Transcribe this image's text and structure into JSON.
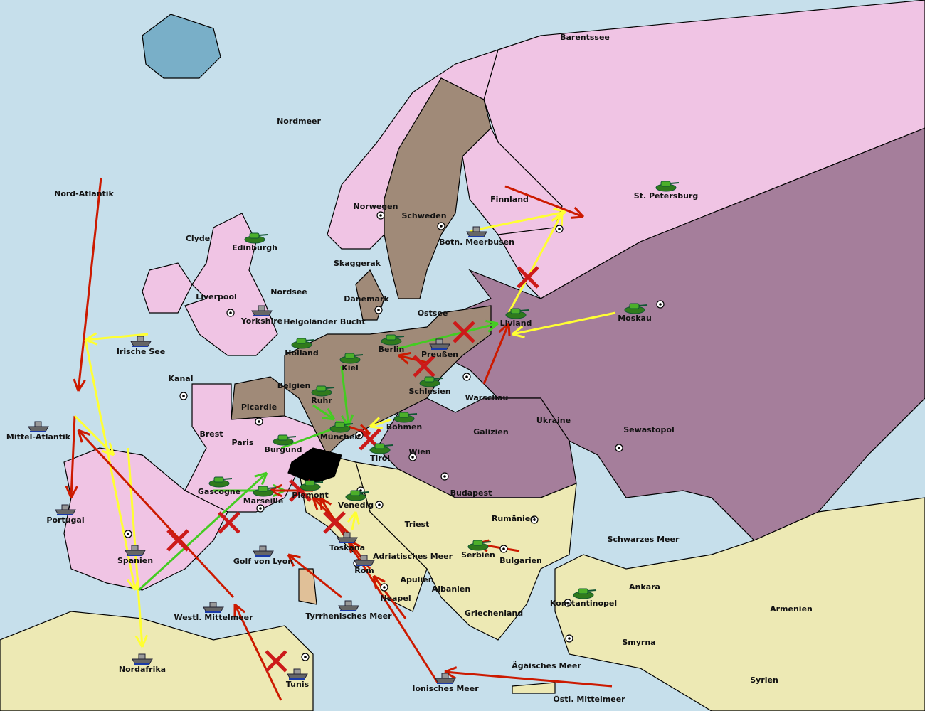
{
  "colors": {
    "sea": "#c6dfeb",
    "england": "#f0c4e4",
    "russia": "#f0c4e4",
    "france": "#f0c4e4",
    "germany": "#a08a78",
    "austria": "#a57e9b",
    "neutral": "#ede9b4",
    "italy": "#ede9b4",
    "switzerland": "#000000",
    "lake": "#79afc8",
    "move": "#cc1a00",
    "support": "#ffff33",
    "convoy": "#44cc22"
  },
  "provinces": [
    "Barentssee",
    "Nordmeer",
    "Nord-Atlantik",
    "St. Petersburg",
    "Finnland",
    "Norwegen",
    "Schweden",
    "Botn. Meerbusen",
    "Clyde",
    "Edinburgh",
    "Skaggerak",
    "Liverpool",
    "Nordsee",
    "Dänemark",
    "Ostsee",
    "Yorkshire",
    "Helgoländer Bucht",
    "Irische See",
    "Livland",
    "Moskau",
    "Holland",
    "Berlin",
    "Preußen",
    "Kiel",
    "Kanal",
    "Belgien",
    "Schlesien",
    "Warschau",
    "Ruhr",
    "Picardie",
    "Ukraine",
    "Mittel-Atlantik",
    "Böhmen",
    "Galizien",
    "Sewastopol",
    "Brest",
    "Paris",
    "München",
    "Wien",
    "Burgund",
    "Tirol",
    "Gascogne",
    "Budapest",
    "Piemont",
    "Marseille",
    "Venedig",
    "Rumänien",
    "Portugal",
    "Triest",
    "Schwarzes Meer",
    "Spanien",
    "Toskana",
    "Adriatisches Meer",
    "Serbien",
    "Golf von Lyon",
    "Bulgarien",
    "Rom",
    "Apulien",
    "Ankara",
    "Albanien",
    "Neapel",
    "Konstantinopel",
    "Armenien",
    "Westl. Mittelmeer",
    "Tyrrhenisches Meer",
    "Griechenland",
    "Smyrna",
    "Nordafrika",
    "Ägäisches Meer",
    "Syrien",
    "Tunis",
    "Ionisches Meer",
    "Östl. Mittelmeer"
  ],
  "units": [
    {
      "type": "army",
      "province": "Edinburgh"
    },
    {
      "type": "fleet",
      "province": "Yorkshire"
    },
    {
      "type": "fleet",
      "province": "Mittel-Atlantik"
    },
    {
      "type": "fleet",
      "province": "Portugal"
    },
    {
      "type": "fleet",
      "province": "Spanien"
    },
    {
      "type": "fleet",
      "province": "Nordafrika"
    },
    {
      "type": "army",
      "province": "Gascogne"
    },
    {
      "type": "army",
      "province": "Marseille"
    },
    {
      "type": "army",
      "province": "Burgund"
    },
    {
      "type": "army",
      "province": "Holland"
    },
    {
      "type": "army",
      "province": "Kiel"
    },
    {
      "type": "army",
      "province": "Ruhr"
    },
    {
      "type": "army",
      "province": "München"
    },
    {
      "type": "army",
      "province": "Böhmen"
    },
    {
      "type": "army",
      "province": "Tirol"
    },
    {
      "type": "army",
      "province": "Berlin"
    },
    {
      "type": "fleet",
      "province": "Preußen"
    },
    {
      "type": "army",
      "province": "Schlesien"
    },
    {
      "type": "fleet",
      "province": "Botn. Meerbusen"
    },
    {
      "type": "army",
      "province": "St. Petersburg"
    },
    {
      "type": "army",
      "province": "Livland"
    },
    {
      "type": "army",
      "province": "Moskau"
    },
    {
      "type": "army",
      "province": "Piemont"
    },
    {
      "type": "army",
      "province": "Venedig"
    },
    {
      "type": "fleet",
      "province": "Toskana"
    },
    {
      "type": "fleet",
      "province": "Rom"
    },
    {
      "type": "army",
      "province": "Serbien"
    },
    {
      "type": "army",
      "province": "Konstantinopel"
    },
    {
      "type": "fleet",
      "province": "Golf von Lyon"
    },
    {
      "type": "fleet",
      "province": "Westl. Mittelmeer"
    },
    {
      "type": "fleet",
      "province": "Tyrrhenisches Meer"
    },
    {
      "type": "fleet",
      "province": "Tunis"
    },
    {
      "type": "fleet",
      "province": "Ionisches Meer"
    },
    {
      "type": "fleet",
      "province": "Irische See"
    }
  ]
}
